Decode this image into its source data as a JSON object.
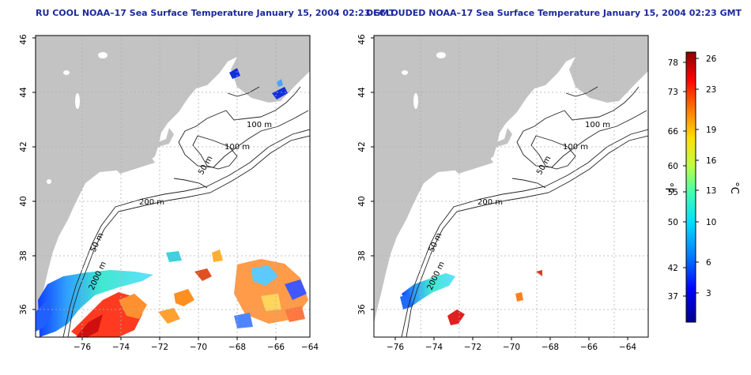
{
  "panels": [
    {
      "title": "RU COOL NOAA–17 Sea Surface Temperature January 15, 2004 02:23 GMT",
      "x_ticks": [
        "−76",
        "−74",
        "−72",
        "−70",
        "−68",
        "−66",
        "−64"
      ],
      "y_ticks": [
        "36",
        "38",
        "40",
        "42",
        "44",
        "46"
      ],
      "contours": [
        "100 m",
        "100 m",
        "50 m",
        "200 m",
        "50 m",
        "2000 m"
      ]
    },
    {
      "title": "DECLOUDED NOAA–17 Sea Surface Temperature January 15, 2004 02:23 GMT",
      "x_ticks": [
        "−76",
        "−74",
        "−72",
        "−70",
        "−68",
        "−66",
        "−64"
      ],
      "y_ticks": [
        "36",
        "38",
        "40",
        "42",
        "44",
        "46"
      ],
      "contours": [
        "100 m",
        "100 m",
        "50 m",
        "200 m",
        "50 m",
        "2000 m"
      ]
    }
  ],
  "colorbar": {
    "fahrenheit_label": "°F",
    "celsius_label": "°C",
    "fahrenheit_ticks": [
      "78",
      "73",
      "66",
      "60",
      "55",
      "50",
      "42",
      "37"
    ],
    "celsius_ticks": [
      "26",
      "23",
      "19",
      "16",
      "13",
      "10",
      "6",
      "3"
    ],
    "range_c": [
      0,
      27
    ],
    "colors": [
      "#00008b",
      "#0000ff",
      "#0080ff",
      "#00e0ff",
      "#40ffb0",
      "#c0ff40",
      "#ffe000",
      "#ff8000",
      "#ff0000",
      "#8b0000"
    ]
  },
  "colors": {
    "land": "#c3c3c3",
    "grid": "#b0b0b0",
    "title": "#1a2a9c"
  }
}
